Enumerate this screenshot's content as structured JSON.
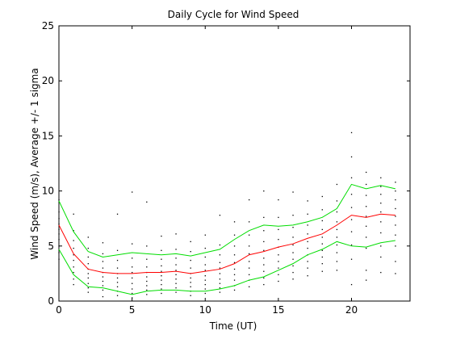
{
  "chart_data": {
    "type": "line",
    "title": "Daily Cycle for Wind Speed",
    "xlabel": "Time (UT)",
    "ylabel": "Wind Speed (m/s), Average +/- 1 sigma",
    "xlim": [
      0,
      24
    ],
    "ylim": [
      0,
      25
    ],
    "x_ticks": [
      0,
      5,
      10,
      15,
      20
    ],
    "y_ticks": [
      0,
      5,
      10,
      15,
      20,
      25
    ],
    "grid": false,
    "x": [
      0,
      1,
      2,
      3,
      4,
      5,
      6,
      7,
      8,
      9,
      10,
      11,
      12,
      13,
      14,
      15,
      16,
      17,
      18,
      19,
      20,
      21,
      22,
      23
    ],
    "series": [
      {
        "color": "#ff0000",
        "values": [
          6.9,
          4.3,
          2.9,
          2.6,
          2.5,
          2.5,
          2.6,
          2.6,
          2.7,
          2.5,
          2.7,
          2.9,
          3.4,
          4.2,
          4.5,
          4.9,
          5.2,
          5.7,
          6.1,
          6.9,
          7.8,
          7.6,
          7.9,
          7.8
        ]
      },
      {
        "color": "#00dd00",
        "values": [
          9.1,
          6.3,
          4.5,
          4.0,
          4.2,
          4.4,
          4.3,
          4.2,
          4.3,
          4.1,
          4.4,
          4.7,
          5.6,
          6.4,
          6.9,
          6.8,
          6.9,
          7.2,
          7.6,
          8.4,
          10.6,
          10.2,
          10.5,
          10.2
        ]
      },
      {
        "color": "#00dd00",
        "values": [
          4.7,
          2.4,
          1.3,
          1.2,
          0.9,
          0.6,
          0.9,
          1.0,
          1.0,
          0.9,
          0.9,
          1.1,
          1.4,
          1.9,
          2.2,
          2.8,
          3.4,
          4.2,
          4.7,
          5.4,
          5.0,
          4.9,
          5.3,
          5.5
        ]
      }
    ],
    "scatter": {
      "color": "#000000",
      "x": [
        0,
        0,
        0,
        0,
        0,
        0,
        0,
        0,
        0,
        0,
        1,
        1,
        1,
        1,
        1,
        1,
        1,
        1,
        1,
        1,
        2,
        2,
        2,
        2,
        2,
        2,
        2,
        2,
        2,
        2,
        3,
        3,
        3,
        3,
        3,
        3,
        3,
        3,
        3,
        3,
        4,
        4,
        4,
        4,
        4,
        4,
        4,
        4,
        4,
        4,
        5,
        5,
        5,
        5,
        5,
        5,
        5,
        5,
        5,
        5,
        6,
        6,
        6,
        6,
        6,
        6,
        6,
        6,
        6,
        6,
        7,
        7,
        7,
        7,
        7,
        7,
        7,
        7,
        7,
        7,
        8,
        8,
        8,
        8,
        8,
        8,
        8,
        8,
        8,
        8,
        9,
        9,
        9,
        9,
        9,
        9,
        9,
        9,
        9,
        9,
        10,
        10,
        10,
        10,
        10,
        10,
        10,
        10,
        10,
        10,
        11,
        11,
        11,
        11,
        11,
        11,
        11,
        11,
        11,
        11,
        12,
        12,
        12,
        12,
        12,
        12,
        12,
        12,
        12,
        12,
        13,
        13,
        13,
        13,
        13,
        13,
        13,
        13,
        13,
        13,
        14,
        14,
        14,
        14,
        14,
        14,
        14,
        14,
        14,
        14,
        15,
        15,
        15,
        15,
        15,
        15,
        15,
        15,
        15,
        15,
        16,
        16,
        16,
        16,
        16,
        16,
        16,
        16,
        16,
        16,
        17,
        17,
        17,
        17,
        17,
        17,
        17,
        17,
        17,
        17,
        18,
        18,
        18,
        18,
        18,
        18,
        18,
        18,
        18,
        18,
        19,
        19,
        19,
        19,
        19,
        19,
        19,
        19,
        19,
        19,
        20,
        20,
        20,
        20,
        20,
        20,
        20,
        20,
        20,
        20,
        21,
        21,
        21,
        21,
        21,
        21,
        21,
        21,
        21,
        21,
        22,
        22,
        22,
        22,
        22,
        22,
        22,
        22,
        22,
        22,
        23,
        23,
        23,
        23,
        23,
        23,
        23,
        23,
        23,
        23
      ],
      "y": [
        9.2,
        8.1,
        7.5,
        7.0,
        6.5,
        6.1,
        5.6,
        5.0,
        4.4,
        3.8,
        7.9,
        6.4,
        5.5,
        4.8,
        4.2,
        3.7,
        3.1,
        2.6,
        2.0,
        1.5,
        5.8,
        4.8,
        4.0,
        3.4,
        2.9,
        2.5,
        2.1,
        1.6,
        1.2,
        0.8,
        5.3,
        4.3,
        3.6,
        3.0,
        2.6,
        2.2,
        1.8,
        1.4,
        1.0,
        0.4,
        7.9,
        4.6,
        3.7,
        3.0,
        2.5,
        2.1,
        1.7,
        1.3,
        0.9,
        0.5,
        9.9,
        5.2,
        3.9,
        3.1,
        2.6,
        2.1,
        1.6,
        1.1,
        0.7,
        0.3,
        9.0,
        5.0,
        3.8,
        3.1,
        2.6,
        2.2,
        1.8,
        1.4,
        1.0,
        0.6,
        5.9,
        4.6,
        3.8,
        3.2,
        2.7,
        2.3,
        1.9,
        1.5,
        1.1,
        0.7,
        6.1,
        4.7,
        3.9,
        3.3,
        2.8,
        2.4,
        2.0,
        1.6,
        1.2,
        0.8,
        5.4,
        4.5,
        3.7,
        3.0,
        2.5,
        2.1,
        1.7,
        1.3,
        0.9,
        0.5,
        6.0,
        4.8,
        4.0,
        3.3,
        2.8,
        2.3,
        1.9,
        1.5,
        1.1,
        0.7,
        7.8,
        5.1,
        4.2,
        3.5,
        3.0,
        2.5,
        2.0,
        1.6,
        1.2,
        0.8,
        7.2,
        6.0,
        5.0,
        4.2,
        3.5,
        2.9,
        2.4,
        1.9,
        1.4,
        1.0,
        9.2,
        7.2,
        6.0,
        5.0,
        4.3,
        3.6,
        3.0,
        2.4,
        1.9,
        1.3,
        10.0,
        7.6,
        6.4,
        5.4,
        4.6,
        3.9,
        3.3,
        2.7,
        2.1,
        1.5,
        9.2,
        7.6,
        6.5,
        5.6,
        4.9,
        4.2,
        3.6,
        3.0,
        2.4,
        1.8,
        9.9,
        7.8,
        6.7,
        5.8,
        5.1,
        4.4,
        3.8,
        3.2,
        2.6,
        2.0,
        9.1,
        7.9,
        6.9,
        6.1,
        5.4,
        4.8,
        4.2,
        3.6,
        3.0,
        2.3,
        9.5,
        8.3,
        7.3,
        6.5,
        5.8,
        5.2,
        4.6,
        4.0,
        3.4,
        2.7,
        10.6,
        9.1,
        8.1,
        7.2,
        6.5,
        5.8,
        5.1,
        4.4,
        3.6,
        2.8,
        15.3,
        13.1,
        11.2,
        9.7,
        8.5,
        7.4,
        6.3,
        5.1,
        3.8,
        1.5,
        11.7,
        10.6,
        9.6,
        8.6,
        7.7,
        6.8,
        5.8,
        4.8,
        2.8,
        1.9,
        11.2,
        10.4,
        9.7,
        8.9,
        8.1,
        7.2,
        6.2,
        5.0,
        4.0,
        2.6,
        10.8,
        10.0,
        9.2,
        8.4,
        7.7,
        6.9,
        6.0,
        5.0,
        3.6,
        2.5
      ]
    }
  }
}
